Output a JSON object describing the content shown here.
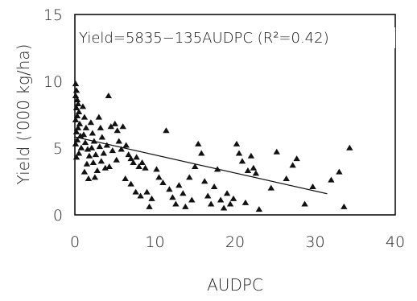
{
  "chart_data": {
    "type": "scatter",
    "title": "",
    "xlabel": "AUDPC",
    "ylabel": "Yield ('000 kg/ha)",
    "xlim": [
      0,
      40
    ],
    "ylim": [
      0,
      15
    ],
    "xticks": [
      "0",
      "10",
      "20",
      "30",
      "40"
    ],
    "yticks": [
      "0",
      "5",
      "10",
      "15"
    ],
    "annotation": "Yield=5835−135AUDPC  (R²=0.42)",
    "grid": false,
    "marker": "triangle",
    "trendline": {
      "intercept": 5.835,
      "slope": -0.135,
      "x_range": [
        0,
        31.5
      ]
    },
    "series": [
      {
        "points": [
          [
            0.1,
            9.8
          ],
          [
            0.2,
            9.3
          ],
          [
            0.1,
            8.9
          ],
          [
            0.3,
            8.6
          ],
          [
            0.4,
            8.3
          ],
          [
            0.2,
            8.0
          ],
          [
            0.5,
            7.7
          ],
          [
            0.3,
            7.4
          ],
          [
            0.1,
            7.1
          ],
          [
            0.6,
            6.8
          ],
          [
            0.4,
            6.5
          ],
          [
            0.2,
            6.2
          ],
          [
            0.7,
            5.9
          ],
          [
            0.3,
            5.6
          ],
          [
            0.1,
            5.3
          ],
          [
            0.8,
            5.0
          ],
          [
            0.5,
            4.6
          ],
          [
            0.2,
            4.3
          ],
          [
            1.0,
            8.1
          ],
          [
            1.2,
            7.3
          ],
          [
            1.4,
            6.5
          ],
          [
            1.1,
            6.0
          ],
          [
            1.3,
            5.4
          ],
          [
            1.6,
            4.9
          ],
          [
            1.8,
            4.4
          ],
          [
            1.5,
            3.8
          ],
          [
            1.2,
            3.2
          ],
          [
            1.7,
            2.7
          ],
          [
            2.0,
            6.9
          ],
          [
            2.2,
            6.1
          ],
          [
            2.4,
            5.5
          ],
          [
            2.1,
            5.0
          ],
          [
            2.6,
            4.5
          ],
          [
            2.3,
            3.9
          ],
          [
            2.8,
            3.3
          ],
          [
            2.5,
            2.8
          ],
          [
            3.0,
            7.3
          ],
          [
            3.2,
            6.5
          ],
          [
            3.4,
            5.8
          ],
          [
            3.1,
            5.1
          ],
          [
            3.6,
            4.6
          ],
          [
            3.3,
            4.0
          ],
          [
            3.8,
            3.5
          ],
          [
            4.2,
            8.9
          ],
          [
            4.5,
            6.6
          ],
          [
            4.0,
            5.2
          ],
          [
            4.7,
            4.8
          ],
          [
            4.3,
            3.6
          ],
          [
            5.0,
            6.8
          ],
          [
            5.3,
            6.3
          ],
          [
            5.5,
            5.5
          ],
          [
            5.8,
            4.9
          ],
          [
            5.2,
            4.1
          ],
          [
            6.0,
            6.6
          ],
          [
            6.4,
            5.2
          ],
          [
            6.7,
            4.5
          ],
          [
            7.0,
            4.2
          ],
          [
            7.3,
            3.9
          ],
          [
            7.7,
            4.3
          ],
          [
            8.0,
            3.6
          ],
          [
            8.4,
            3.9
          ],
          [
            8.8,
            3.5
          ],
          [
            6.3,
            2.7
          ],
          [
            7.0,
            2.3
          ],
          [
            7.6,
            1.7
          ],
          [
            8.2,
            1.4
          ],
          [
            9.0,
            1.7
          ],
          [
            9.6,
            1.2
          ],
          [
            9.3,
            0.6
          ],
          [
            10.2,
            3.4
          ],
          [
            10.5,
            2.8
          ],
          [
            11.0,
            2.4
          ],
          [
            11.4,
            6.3
          ],
          [
            11.8,
            1.9
          ],
          [
            12.2,
            1.3
          ],
          [
            12.6,
            0.8
          ],
          [
            13.0,
            2.2
          ],
          [
            13.5,
            1.6
          ],
          [
            13.8,
            0.6
          ],
          [
            14.3,
            2.8
          ],
          [
            14.6,
            1.1
          ],
          [
            15.0,
            3.6
          ],
          [
            15.4,
            5.3
          ],
          [
            15.8,
            4.6
          ],
          [
            16.2,
            2.5
          ],
          [
            16.6,
            1.4
          ],
          [
            17.0,
            0.8
          ],
          [
            17.4,
            2.1
          ],
          [
            17.8,
            3.4
          ],
          [
            18.2,
            1.1
          ],
          [
            18.6,
            0.5
          ],
          [
            19.0,
            1.6
          ],
          [
            19.4,
            0.8
          ],
          [
            19.8,
            1.2
          ],
          [
            20.2,
            5.3
          ],
          [
            20.5,
            4.6
          ],
          [
            20.9,
            4.0
          ],
          [
            21.3,
            0.9
          ],
          [
            21.6,
            3.3
          ],
          [
            22.0,
            4.4
          ],
          [
            22.3,
            3.5
          ],
          [
            22.6,
            3.1
          ],
          [
            23.0,
            0.4
          ],
          [
            24.5,
            2.0
          ],
          [
            25.2,
            4.7
          ],
          [
            26.4,
            2.7
          ],
          [
            27.2,
            3.7
          ],
          [
            27.7,
            4.2
          ],
          [
            28.7,
            0.8
          ],
          [
            29.7,
            2.1
          ],
          [
            32.0,
            2.6
          ],
          [
            33.0,
            3.2
          ],
          [
            33.6,
            0.6
          ],
          [
            34.3,
            5.0
          ]
        ]
      }
    ]
  }
}
